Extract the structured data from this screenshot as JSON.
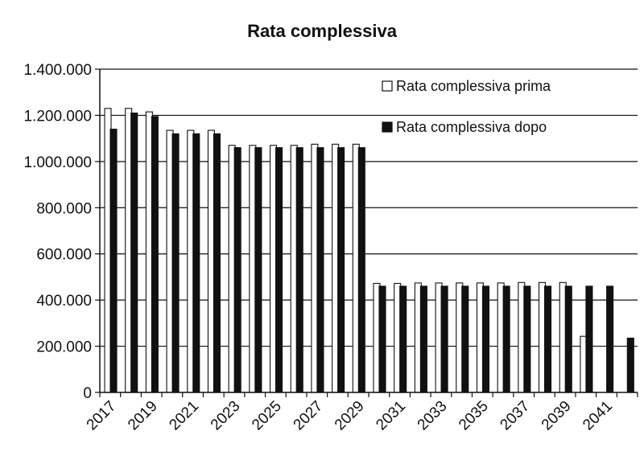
{
  "chart_data": {
    "type": "bar",
    "title": "Rata complessiva",
    "xlabel": "",
    "ylabel": "",
    "ylim": [
      0,
      1400000
    ],
    "yticks": [
      "0",
      "200.000",
      "400.000",
      "600.000",
      "800.000",
      "1.000.000",
      "1.200.000",
      "1.400.000"
    ],
    "ytick_values": [
      0,
      200000,
      400000,
      600000,
      800000,
      1000000,
      1200000,
      1400000
    ],
    "categories": [
      "2017",
      "2018",
      "2019",
      "2020",
      "2021",
      "2022",
      "2023",
      "2024",
      "2025",
      "2026",
      "2027",
      "2028",
      "2029",
      "2030",
      "2031",
      "2032",
      "2033",
      "2034",
      "2035",
      "2036",
      "2037",
      "2038",
      "2039",
      "2040",
      "2041",
      "2042"
    ],
    "xtick_labels": [
      "2017",
      "2019",
      "2021",
      "2023",
      "2025",
      "2027",
      "2029",
      "2031",
      "2033",
      "2035",
      "2037",
      "2039",
      "2041"
    ],
    "grid": "horizontal",
    "legend_position": "top-right",
    "series": [
      {
        "name": "Rata complessiva prima",
        "color": "#ffffff",
        "values": [
          1230000,
          1230000,
          1215000,
          1135000,
          1135000,
          1135000,
          1070000,
          1070000,
          1070000,
          1070000,
          1075000,
          1075000,
          1075000,
          472000,
          472000,
          474000,
          474000,
          474000,
          474000,
          474000,
          476000,
          476000,
          476000,
          243000,
          0,
          0
        ]
      },
      {
        "name": "Rata complessiva dopo",
        "color": "#111111",
        "values": [
          1140000,
          1210000,
          1195000,
          1120000,
          1120000,
          1120000,
          1060000,
          1060000,
          1060000,
          1060000,
          1060000,
          1060000,
          1060000,
          460000,
          460000,
          460000,
          460000,
          460000,
          460000,
          460000,
          460000,
          460000,
          460000,
          460000,
          460000,
          235000
        ]
      }
    ]
  }
}
